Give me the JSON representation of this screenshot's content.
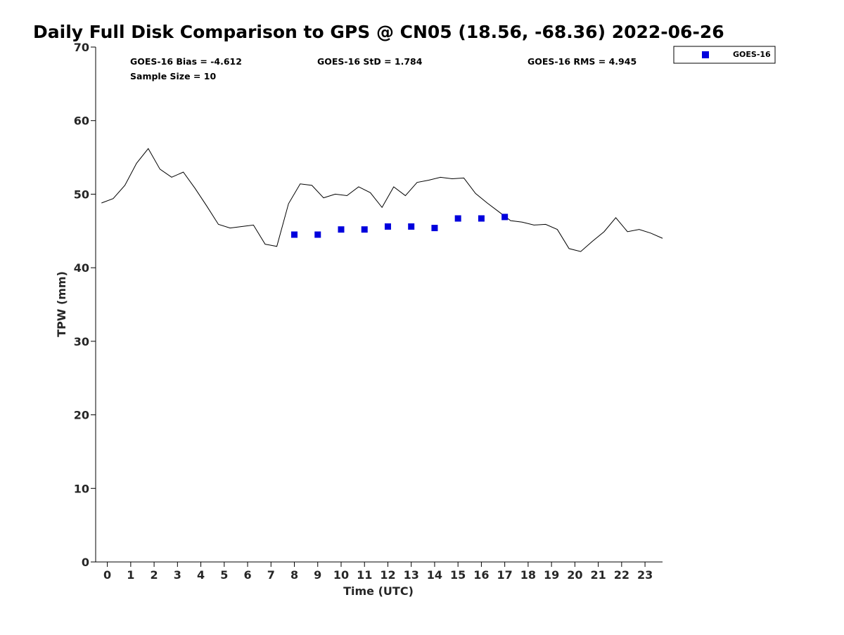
{
  "chart_data": {
    "type": "scatter",
    "title": "Daily Full Disk Comparison to GPS @ CN05 (18.56, -68.36) 2022-06-26",
    "xlabel": "Time (UTC)",
    "ylabel": "TPW (mm)",
    "xlim": [
      -0.5,
      23.75
    ],
    "ylim": [
      0,
      70
    ],
    "x_ticks": [
      0,
      1,
      2,
      3,
      4,
      5,
      6,
      7,
      8,
      9,
      10,
      11,
      12,
      13,
      14,
      15,
      16,
      17,
      18,
      19,
      20,
      21,
      22,
      23
    ],
    "y_ticks": [
      0,
      10,
      20,
      30,
      40,
      50,
      60,
      70
    ],
    "grid": false,
    "legend_position": "top-right",
    "stats": {
      "bias": "GOES-16 Bias = -4.612",
      "std": "GOES-16 StD = 1.784",
      "rms": "GOES-16 RMS = 4.945",
      "sample_size": "Sample Size = 10"
    },
    "series": [
      {
        "name": "GOES-16",
        "kind": "scatter",
        "marker": "square",
        "color": "#0000dd",
        "x": [
          8,
          9,
          10,
          11,
          12,
          13,
          14,
          15,
          16,
          17
        ],
        "y": [
          44.5,
          44.5,
          45.2,
          45.2,
          45.6,
          45.6,
          45.4,
          46.7,
          46.7,
          46.9
        ]
      },
      {
        "kind": "line",
        "color": "#000000",
        "x": [
          -0.25,
          0.25,
          0.75,
          1.25,
          1.75,
          2.25,
          2.75,
          3.25,
          3.75,
          4.25,
          4.75,
          5.25,
          5.75,
          6.25,
          6.75,
          7.25,
          7.75,
          8.25,
          8.75,
          9.25,
          9.75,
          10.25,
          10.75,
          11.25,
          11.75,
          12.25,
          12.75,
          13.25,
          13.75,
          14.25,
          14.75,
          15.25,
          15.75,
          16.25,
          16.75,
          17.25,
          17.75,
          18.25,
          18.75,
          19.25,
          19.75,
          20.25,
          20.75,
          21.25,
          21.75,
          22.25,
          22.75,
          23.25,
          23.75
        ],
        "y": [
          48.8,
          49.4,
          51.2,
          54.2,
          56.2,
          53.4,
          52.3,
          53.0,
          50.8,
          48.4,
          45.9,
          45.4,
          45.6,
          45.8,
          43.2,
          42.9,
          48.7,
          51.4,
          51.2,
          49.5,
          50.0,
          49.8,
          51.0,
          50.2,
          48.2,
          51.0,
          49.8,
          51.6,
          51.9,
          52.3,
          52.1,
          52.2,
          50.1,
          48.8,
          47.6,
          46.4,
          46.2,
          45.8,
          45.9,
          45.2,
          42.6,
          42.2,
          43.6,
          44.9,
          46.8,
          44.9,
          45.2,
          44.7,
          44.0
        ]
      }
    ]
  }
}
